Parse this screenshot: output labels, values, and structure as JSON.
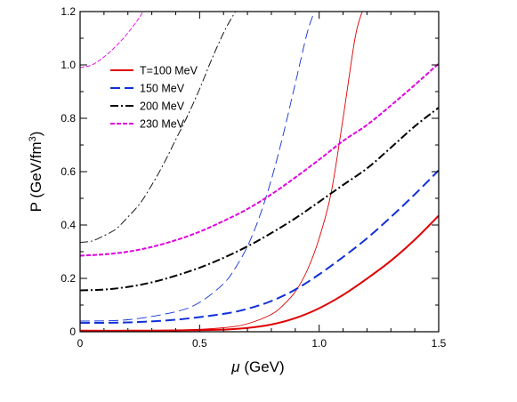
{
  "chart_data": {
    "type": "line",
    "title": "",
    "xlabel": "μ (GeV)",
    "xlabel_symbol": "μ",
    "xlabel_unit": " (GeV)",
    "ylabel": "P (GeV/fm3)",
    "ylabel_main": "P (GeV/fm",
    "ylabel_sup": "3",
    "ylabel_close": ")",
    "xlim": [
      0,
      1.5
    ],
    "ylim": [
      0,
      1.2
    ],
    "xticks": [
      0,
      0.5,
      1,
      1.5
    ],
    "xtick_labels": [
      "0",
      "0.5",
      "1.0",
      "1.5"
    ],
    "yticks": [
      0,
      0.2,
      0.4,
      0.6,
      0.8,
      1.0,
      1.2
    ],
    "ytick_labels": [
      "0",
      "0.2",
      "0.4",
      "0.6",
      "0.8",
      "1.0",
      "1.2"
    ],
    "grid": false,
    "legend": "top-left",
    "series": [
      {
        "name": "T=100 MeV",
        "color": "#e00000",
        "dash": "solid",
        "thick": {
          "x": [
            0,
            0.2,
            0.4,
            0.6,
            0.7,
            0.8,
            0.9,
            1.0,
            1.1,
            1.2,
            1.3,
            1.4,
            1.5
          ],
          "y": [
            0.004,
            0.004,
            0.005,
            0.008,
            0.014,
            0.027,
            0.051,
            0.088,
            0.138,
            0.199,
            0.266,
            0.345,
            0.435
          ]
        },
        "thin": {
          "x": [
            0,
            0.4,
            0.6,
            0.7,
            0.8,
            0.85,
            0.9,
            0.95,
            1.0,
            1.05,
            1.1,
            1.15,
            1.18
          ],
          "y": [
            0.004,
            0.006,
            0.015,
            0.03,
            0.065,
            0.1,
            0.15,
            0.23,
            0.35,
            0.52,
            0.8,
            1.1,
            1.2
          ]
        }
      },
      {
        "name": "150 MeV",
        "color": "#1030d8",
        "dash": "long-dash",
        "thick": {
          "x": [
            0,
            0.2,
            0.4,
            0.6,
            0.7,
            0.8,
            0.9,
            1.0,
            1.1,
            1.2,
            1.3,
            1.4,
            1.5
          ],
          "y": [
            0.033,
            0.035,
            0.045,
            0.067,
            0.086,
            0.115,
            0.158,
            0.215,
            0.28,
            0.35,
            0.43,
            0.515,
            0.605
          ]
        },
        "thin": {
          "x": [
            0,
            0.2,
            0.4,
            0.5,
            0.6,
            0.65,
            0.7,
            0.75,
            0.8,
            0.85,
            0.9,
            0.95,
            0.98
          ],
          "y": [
            0.04,
            0.045,
            0.075,
            0.11,
            0.18,
            0.24,
            0.32,
            0.43,
            0.57,
            0.74,
            0.93,
            1.12,
            1.2
          ]
        }
      },
      {
        "name": "200 MeV",
        "color": "#000000",
        "dash": "dash-dot",
        "thick": {
          "x": [
            0,
            0.1,
            0.2,
            0.3,
            0.4,
            0.5,
            0.6,
            0.7,
            0.8,
            0.9,
            1.0,
            1.1,
            1.2,
            1.3,
            1.4,
            1.5
          ],
          "y": [
            0.155,
            0.158,
            0.168,
            0.185,
            0.21,
            0.24,
            0.277,
            0.32,
            0.37,
            0.425,
            0.487,
            0.55,
            0.612,
            0.69,
            0.77,
            0.84
          ]
        },
        "thin": {
          "x": [
            0,
            0.05,
            0.1,
            0.15,
            0.2,
            0.25,
            0.3,
            0.35,
            0.4,
            0.45,
            0.5,
            0.55,
            0.6,
            0.63,
            0.65
          ],
          "y": [
            0.335,
            0.34,
            0.36,
            0.385,
            0.43,
            0.48,
            0.55,
            0.63,
            0.72,
            0.81,
            0.91,
            1.02,
            1.12,
            1.17,
            1.2
          ]
        }
      },
      {
        "name": "230 MeV",
        "color": "#e000e0",
        "dash": "short-dash",
        "thick": {
          "x": [
            0,
            0.1,
            0.2,
            0.3,
            0.4,
            0.5,
            0.6,
            0.7,
            0.8,
            0.9,
            1.0,
            1.1,
            1.2,
            1.3,
            1.4,
            1.5
          ],
          "y": [
            0.285,
            0.29,
            0.3,
            0.318,
            0.343,
            0.375,
            0.415,
            0.46,
            0.515,
            0.578,
            0.645,
            0.715,
            0.775,
            0.848,
            0.925,
            1.005
          ]
        },
        "thin": {
          "x": [
            0,
            0.05,
            0.1,
            0.15,
            0.2,
            0.25,
            0.26
          ],
          "y": [
            0.99,
            1.0,
            1.03,
            1.07,
            1.12,
            1.18,
            1.2
          ]
        }
      }
    ]
  }
}
